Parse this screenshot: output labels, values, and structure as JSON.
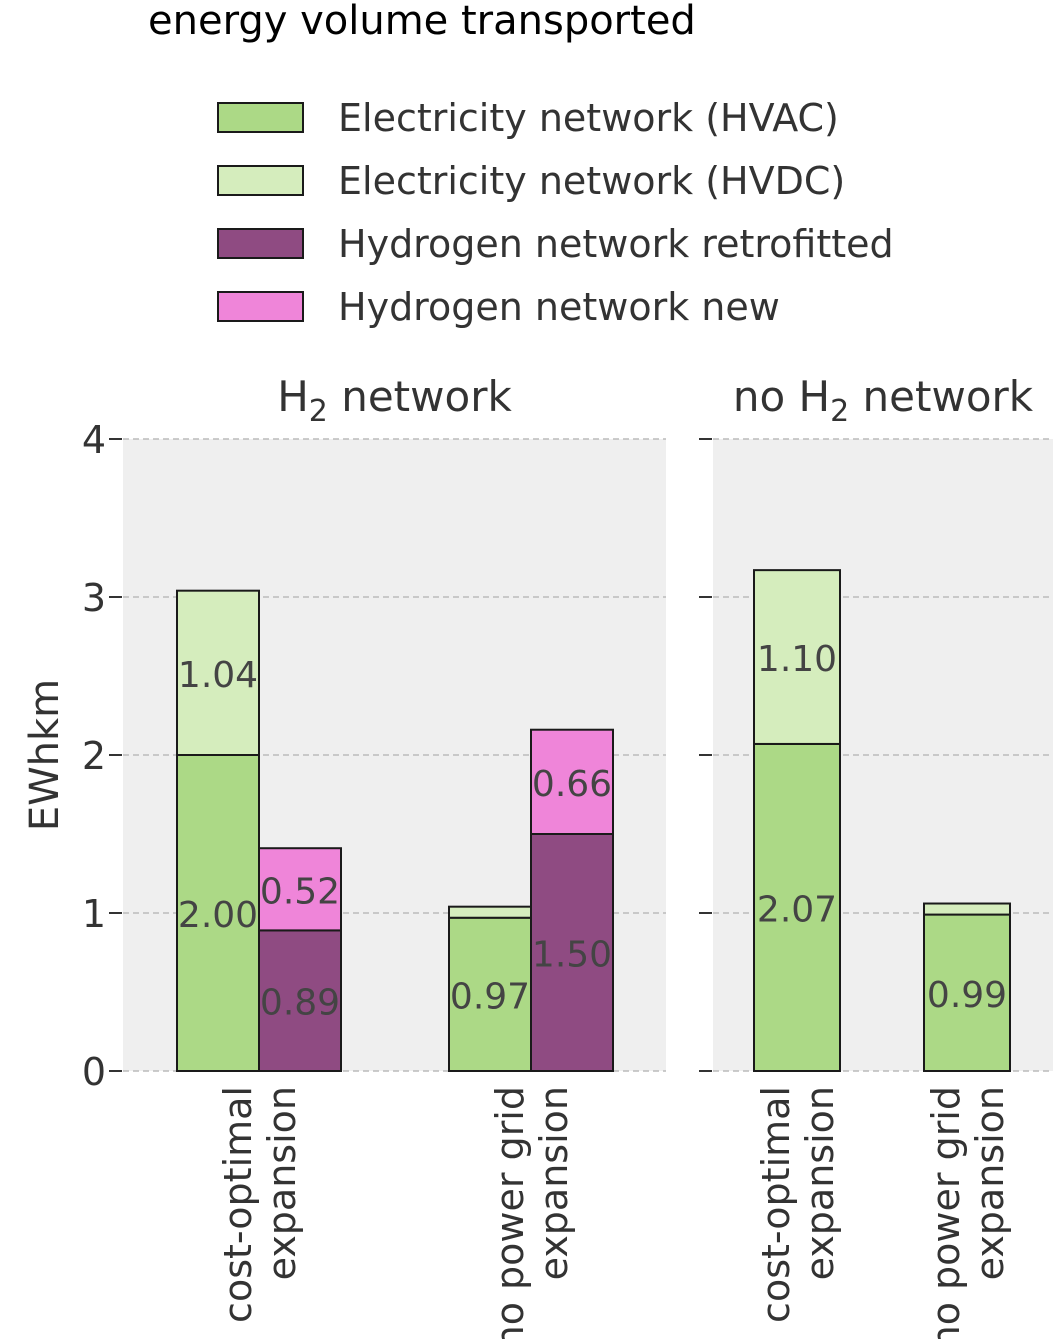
{
  "chart_data": {
    "type": "bar",
    "stacked": true,
    "title": "energy volume transported",
    "ylabel": "EWhkm",
    "ylim": [
      0,
      4
    ],
    "yticks": [
      "0",
      "1",
      "2",
      "3",
      "4"
    ],
    "grid": true,
    "legend_position": "top",
    "legend": [
      {
        "name": "Electricity network (HVAC)",
        "color": "#acd986"
      },
      {
        "name": "Electricity network (HVDC)",
        "color": "#d5edbd"
      },
      {
        "name": "Hydrogen network retrofitted",
        "color": "#8f4b82"
      },
      {
        "name": "Hydrogen network new",
        "color": "#ef85d9"
      }
    ],
    "panels": [
      {
        "title_main": "H",
        "title_sub": "2",
        "title_rest": " network",
        "groups": [
          {
            "label_lines": [
              "cost-optimal",
              "expansion"
            ],
            "bars": [
              {
                "segments": [
                  {
                    "series": "Electricity network (HVAC)",
                    "value": 2.0,
                    "label": "2.00"
                  },
                  {
                    "series": "Electricity network (HVDC)",
                    "value": 1.04,
                    "label": "1.04"
                  }
                ]
              },
              {
                "segments": [
                  {
                    "series": "Hydrogen network retrofitted",
                    "value": 0.89,
                    "label": "0.89"
                  },
                  {
                    "series": "Hydrogen network new",
                    "value": 0.52,
                    "label": "0.52"
                  }
                ]
              }
            ]
          },
          {
            "label_lines": [
              "no power grid",
              "expansion"
            ],
            "bars": [
              {
                "segments": [
                  {
                    "series": "Electricity network (HVAC)",
                    "value": 0.97,
                    "label": "0.97"
                  },
                  {
                    "series": "Electricity network (HVDC)",
                    "value": 0.07,
                    "label": ""
                  }
                ]
              },
              {
                "segments": [
                  {
                    "series": "Hydrogen network retrofitted",
                    "value": 1.5,
                    "label": "1.50"
                  },
                  {
                    "series": "Hydrogen network new",
                    "value": 0.66,
                    "label": "0.66"
                  }
                ]
              }
            ]
          }
        ]
      },
      {
        "title_main": "no H",
        "title_sub": "2",
        "title_rest": " network",
        "groups": [
          {
            "label_lines": [
              "cost-optimal",
              "expansion"
            ],
            "bars": [
              {
                "segments": [
                  {
                    "series": "Electricity network (HVAC)",
                    "value": 2.07,
                    "label": "2.07"
                  },
                  {
                    "series": "Electricity network (HVDC)",
                    "value": 1.1,
                    "label": "1.10"
                  }
                ]
              }
            ]
          },
          {
            "label_lines": [
              "no power grid",
              "expansion"
            ],
            "bars": [
              {
                "segments": [
                  {
                    "series": "Electricity network (HVAC)",
                    "value": 0.99,
                    "label": "0.99"
                  },
                  {
                    "series": "Electricity network (HVDC)",
                    "value": 0.07,
                    "label": ""
                  }
                ]
              }
            ]
          }
        ]
      }
    ]
  }
}
